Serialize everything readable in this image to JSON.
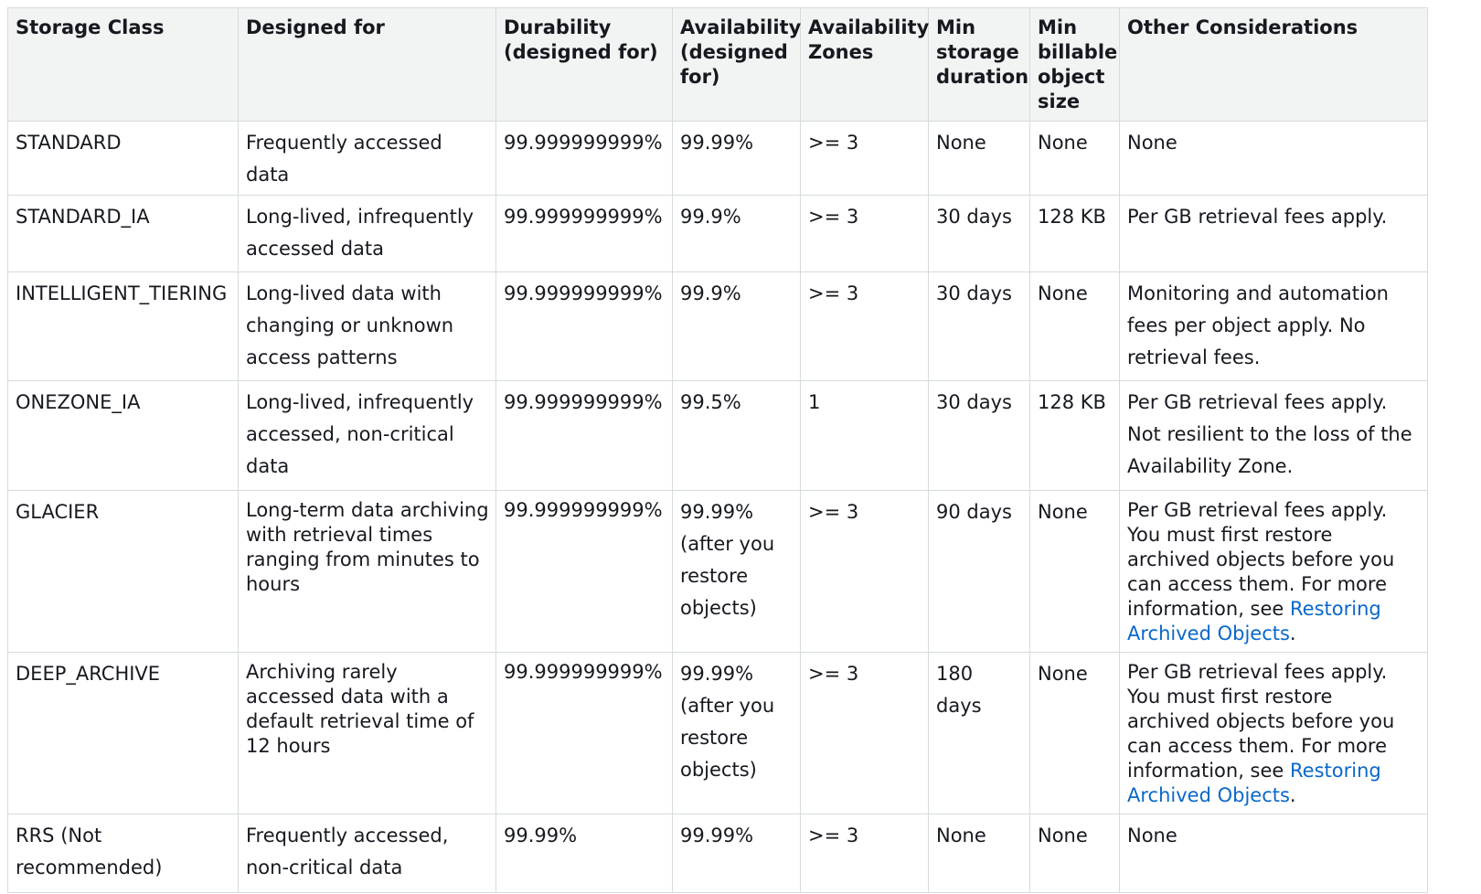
{
  "headers": {
    "storage_class": "Storage Class",
    "designed_for": "Designed for",
    "durability": "Durability (designed for)",
    "availability": "Availability (designed for)",
    "availability_zones": "Availability Zones",
    "min_storage_duration": "Min storage duration",
    "min_billable_object_size": "Min billable object size",
    "other_considerations": "Other Considerations"
  },
  "rows": [
    {
      "storage_class": "STANDARD",
      "designed_for": "Frequently accessed data",
      "durability": "99.999999999%",
      "availability": "99.99%",
      "zones": ">= 3",
      "min_duration": "None",
      "min_size": "None",
      "other": "None"
    },
    {
      "storage_class": "STANDARD_IA",
      "designed_for": "Long-lived, infrequently accessed data",
      "durability": "99.999999999%",
      "availability": "99.9%",
      "zones": ">= 3",
      "min_duration": "30 days",
      "min_size": "128 KB",
      "other": "Per GB retrieval fees apply."
    },
    {
      "storage_class": "INTELLIGENT_TIERING",
      "designed_for": "Long-lived data with changing or unknown access patterns",
      "durability": "99.999999999%",
      "availability": "99.9%",
      "zones": ">= 3",
      "min_duration": "30 days",
      "min_size": "None",
      "other": "Monitoring and automation fees per object apply. No retrieval fees."
    },
    {
      "storage_class": "ONEZONE_IA",
      "designed_for": "Long-lived, infrequently accessed, non-critical data",
      "durability": "99.999999999%",
      "availability": "99.5%",
      "zones": "1",
      "min_duration": "30 days",
      "min_size": "128 KB",
      "other": "Per GB retrieval fees apply. Not resilient to the loss of the Availability Zone."
    },
    {
      "storage_class": "GLACIER",
      "designed_for": "Long-term data archiving with retrieval times ranging from minutes to hours",
      "durability": "99.999999999%",
      "availability": "99.99% (after you restore objects)",
      "zones": ">= 3",
      "min_duration": "90 days",
      "min_size": "None",
      "other_text": "Per GB retrieval fees apply. You must first restore archived objects before you can access them. For more information, see ",
      "other_link": "Restoring Archived Objects",
      "other_end": "."
    },
    {
      "storage_class": "DEEP_ARCHIVE",
      "designed_for": "Archiving rarely accessed data with a default retrieval time of 12 hours",
      "durability": "99.999999999%",
      "availability": "99.99% (after you restore objects)",
      "zones": ">= 3",
      "min_duration": "180 days",
      "min_size": "None",
      "other_text": "Per GB retrieval fees apply. You must first restore archived objects before you can access them. For more information, see ",
      "other_link": "Restoring Archived Objects",
      "other_end": "."
    },
    {
      "storage_class": "RRS (Not recommended)",
      "designed_for": "Frequently accessed, non-critical data",
      "durability": "99.99%",
      "availability": "99.99%",
      "zones": ">= 3",
      "min_duration": "None",
      "min_size": "None",
      "other": "None"
    }
  ]
}
